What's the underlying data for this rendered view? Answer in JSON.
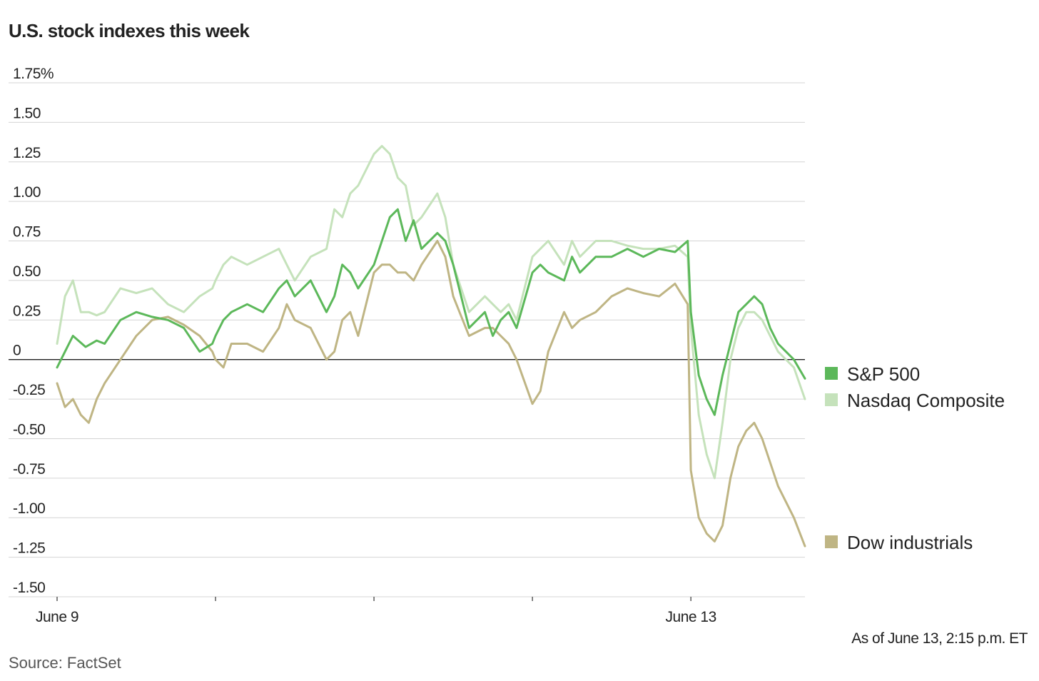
{
  "title": "U.S. stock indexes this week",
  "note": "As of June 13, 2:15 p.m. ET",
  "source": "Source: FactSet",
  "chart_data": {
    "type": "line",
    "title": "U.S. stock indexes this week",
    "xlabel": "",
    "ylabel": "",
    "ylim": [
      -1.5,
      1.75
    ],
    "xlim": [
      0,
      4.72
    ],
    "y_ticks": [
      1.75,
      1.5,
      1.25,
      1.0,
      0.75,
      0.5,
      0.25,
      0,
      -0.25,
      -0.5,
      -0.75,
      -1.0,
      -1.25,
      -1.5
    ],
    "y_tick_labels": [
      "1.75%",
      "1.50",
      "1.25",
      "1.00",
      "0.75",
      "0.50",
      "0.25",
      "0",
      "-0.25",
      "-0.50",
      "-0.75",
      "-1.00",
      "-1.25",
      "-1.50"
    ],
    "x_ticks": [
      0,
      1,
      2,
      3,
      4
    ],
    "x_tick_labels": [
      "June 9",
      "",
      "",
      "",
      "June 13"
    ],
    "grid": true,
    "zero_line": true,
    "series": [
      {
        "name": "S&P 500",
        "color": "#5cb85a",
        "x": [
          0,
          0.05,
          0.1,
          0.18,
          0.25,
          0.3,
          0.4,
          0.5,
          0.6,
          0.7,
          0.8,
          0.9,
          0.98,
          1.0,
          1.05,
          1.1,
          1.2,
          1.3,
          1.4,
          1.45,
          1.5,
          1.6,
          1.7,
          1.75,
          1.8,
          1.85,
          1.9,
          2.0,
          2.05,
          2.1,
          2.15,
          2.2,
          2.25,
          2.3,
          2.4,
          2.45,
          2.5,
          2.6,
          2.7,
          2.75,
          2.8,
          2.85,
          2.9,
          3.0,
          3.05,
          3.1,
          3.2,
          3.25,
          3.3,
          3.4,
          3.5,
          3.6,
          3.7,
          3.8,
          3.9,
          3.98,
          4.0,
          4.05,
          4.1,
          4.15,
          4.2,
          4.25,
          4.3,
          4.35,
          4.4,
          4.45,
          4.5,
          4.55,
          4.6,
          4.65,
          4.72
        ],
        "values": [
          -0.05,
          0.05,
          0.15,
          0.08,
          0.12,
          0.1,
          0.25,
          0.3,
          0.27,
          0.25,
          0.2,
          0.05,
          0.1,
          0.15,
          0.25,
          0.3,
          0.35,
          0.3,
          0.45,
          0.5,
          0.4,
          0.5,
          0.3,
          0.4,
          0.6,
          0.55,
          0.45,
          0.6,
          0.75,
          0.9,
          0.95,
          0.75,
          0.88,
          0.7,
          0.8,
          0.75,
          0.6,
          0.2,
          0.3,
          0.15,
          0.25,
          0.3,
          0.2,
          0.55,
          0.6,
          0.55,
          0.5,
          0.65,
          0.55,
          0.65,
          0.65,
          0.7,
          0.65,
          0.7,
          0.68,
          0.75,
          0.3,
          -0.1,
          -0.25,
          -0.35,
          -0.1,
          0.1,
          0.3,
          0.35,
          0.4,
          0.35,
          0.2,
          0.1,
          0.05,
          0.0,
          -0.12
        ]
      },
      {
        "name": "Nasdaq Composite",
        "color": "#c5e2bb",
        "x": [
          0,
          0.05,
          0.1,
          0.15,
          0.2,
          0.25,
          0.3,
          0.4,
          0.5,
          0.6,
          0.7,
          0.8,
          0.9,
          0.98,
          1.0,
          1.05,
          1.1,
          1.2,
          1.3,
          1.4,
          1.45,
          1.5,
          1.6,
          1.7,
          1.75,
          1.8,
          1.85,
          1.9,
          2.0,
          2.05,
          2.1,
          2.15,
          2.2,
          2.25,
          2.3,
          2.4,
          2.45,
          2.5,
          2.6,
          2.7,
          2.75,
          2.8,
          2.85,
          2.9,
          3.0,
          3.05,
          3.1,
          3.2,
          3.25,
          3.3,
          3.4,
          3.5,
          3.6,
          3.7,
          3.8,
          3.9,
          3.98,
          4.0,
          4.05,
          4.1,
          4.15,
          4.2,
          4.25,
          4.3,
          4.35,
          4.4,
          4.45,
          4.5,
          4.55,
          4.6,
          4.65,
          4.72
        ],
        "values": [
          0.1,
          0.4,
          0.5,
          0.3,
          0.3,
          0.28,
          0.3,
          0.45,
          0.42,
          0.45,
          0.35,
          0.3,
          0.4,
          0.45,
          0.5,
          0.6,
          0.65,
          0.6,
          0.65,
          0.7,
          0.6,
          0.5,
          0.65,
          0.7,
          0.95,
          0.9,
          1.05,
          1.1,
          1.3,
          1.35,
          1.3,
          1.15,
          1.1,
          0.85,
          0.9,
          1.05,
          0.9,
          0.6,
          0.3,
          0.4,
          0.35,
          0.3,
          0.35,
          0.25,
          0.65,
          0.7,
          0.75,
          0.6,
          0.75,
          0.65,
          0.75,
          0.75,
          0.72,
          0.7,
          0.7,
          0.72,
          0.65,
          0.2,
          -0.35,
          -0.6,
          -0.75,
          -0.4,
          0.0,
          0.2,
          0.3,
          0.3,
          0.25,
          0.15,
          0.05,
          0.0,
          -0.05,
          -0.25
        ]
      },
      {
        "name": "Dow industrials",
        "color": "#bfb584",
        "x": [
          0,
          0.05,
          0.1,
          0.15,
          0.2,
          0.25,
          0.3,
          0.4,
          0.5,
          0.6,
          0.7,
          0.8,
          0.9,
          0.98,
          1.0,
          1.05,
          1.1,
          1.2,
          1.3,
          1.4,
          1.45,
          1.5,
          1.6,
          1.7,
          1.75,
          1.8,
          1.85,
          1.9,
          2.0,
          2.05,
          2.1,
          2.15,
          2.2,
          2.25,
          2.3,
          2.4,
          2.45,
          2.5,
          2.6,
          2.7,
          2.75,
          2.8,
          2.85,
          2.9,
          3.0,
          3.05,
          3.1,
          3.2,
          3.25,
          3.3,
          3.4,
          3.5,
          3.6,
          3.7,
          3.8,
          3.9,
          3.98,
          4.0,
          4.05,
          4.1,
          4.15,
          4.2,
          4.25,
          4.3,
          4.35,
          4.4,
          4.45,
          4.5,
          4.55,
          4.6,
          4.65,
          4.72
        ],
        "values": [
          -0.15,
          -0.3,
          -0.25,
          -0.35,
          -0.4,
          -0.25,
          -0.15,
          0.0,
          0.15,
          0.25,
          0.27,
          0.22,
          0.15,
          0.05,
          0.0,
          -0.05,
          0.1,
          0.1,
          0.05,
          0.2,
          0.35,
          0.25,
          0.2,
          0.0,
          0.05,
          0.25,
          0.3,
          0.15,
          0.55,
          0.6,
          0.6,
          0.55,
          0.55,
          0.5,
          0.6,
          0.75,
          0.65,
          0.4,
          0.15,
          0.2,
          0.2,
          0.15,
          0.1,
          0.0,
          -0.28,
          -0.2,
          0.05,
          0.3,
          0.2,
          0.25,
          0.3,
          0.4,
          0.45,
          0.42,
          0.4,
          0.48,
          0.35,
          -0.7,
          -1.0,
          -1.1,
          -1.15,
          -1.05,
          -0.75,
          -0.55,
          -0.45,
          -0.4,
          -0.5,
          -0.65,
          -0.8,
          -0.9,
          -1.0,
          -1.18
        ]
      }
    ],
    "legend": [
      {
        "label": "S&P 500",
        "color": "#5cb85a"
      },
      {
        "label": "Nasdaq Composite",
        "color": "#c5e2bb"
      },
      {
        "label": "Dow industrials",
        "color": "#bfb584"
      }
    ],
    "legend_position": "right"
  }
}
